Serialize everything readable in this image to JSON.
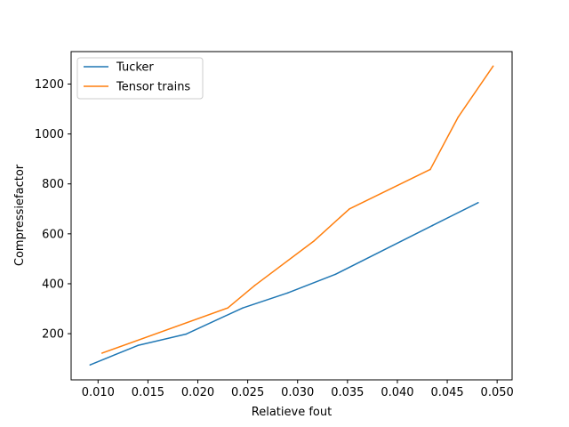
{
  "chart_data": {
    "type": "line",
    "title": "",
    "xlabel": "Relatieve fout",
    "ylabel": "Compressiefactor",
    "xlim": [
      0.0073,
      0.0515
    ],
    "ylim": [
      15,
      1330
    ],
    "xticks": [
      0.01,
      0.015,
      0.02,
      0.025,
      0.03,
      0.035,
      0.04,
      0.045,
      0.05
    ],
    "xtick_labels": [
      "0.010",
      "0.015",
      "0.020",
      "0.025",
      "0.030",
      "0.035",
      "0.040",
      "0.045",
      "0.050"
    ],
    "yticks": [
      200,
      400,
      600,
      800,
      1000,
      1200
    ],
    "ytick_labels": [
      "200",
      "400",
      "600",
      "800",
      "1000",
      "1200"
    ],
    "grid": false,
    "legend_position": "top-left",
    "series": [
      {
        "name": "Tucker",
        "color": "#1f77b4",
        "x": [
          0.0092,
          0.014,
          0.0188,
          0.0245,
          0.029,
          0.0338,
          0.0435,
          0.0481
        ],
        "y": [
          75,
          153,
          198,
          303,
          363,
          438,
          633,
          725
        ]
      },
      {
        "name": "Tensor trains",
        "color": "#ff7f0e",
        "x": [
          0.0104,
          0.023,
          0.0257,
          0.0316,
          0.0352,
          0.0433,
          0.0461,
          0.0496
        ],
        "y": [
          122,
          303,
          393,
          570,
          700,
          858,
          1068,
          1272
        ]
      }
    ]
  }
}
